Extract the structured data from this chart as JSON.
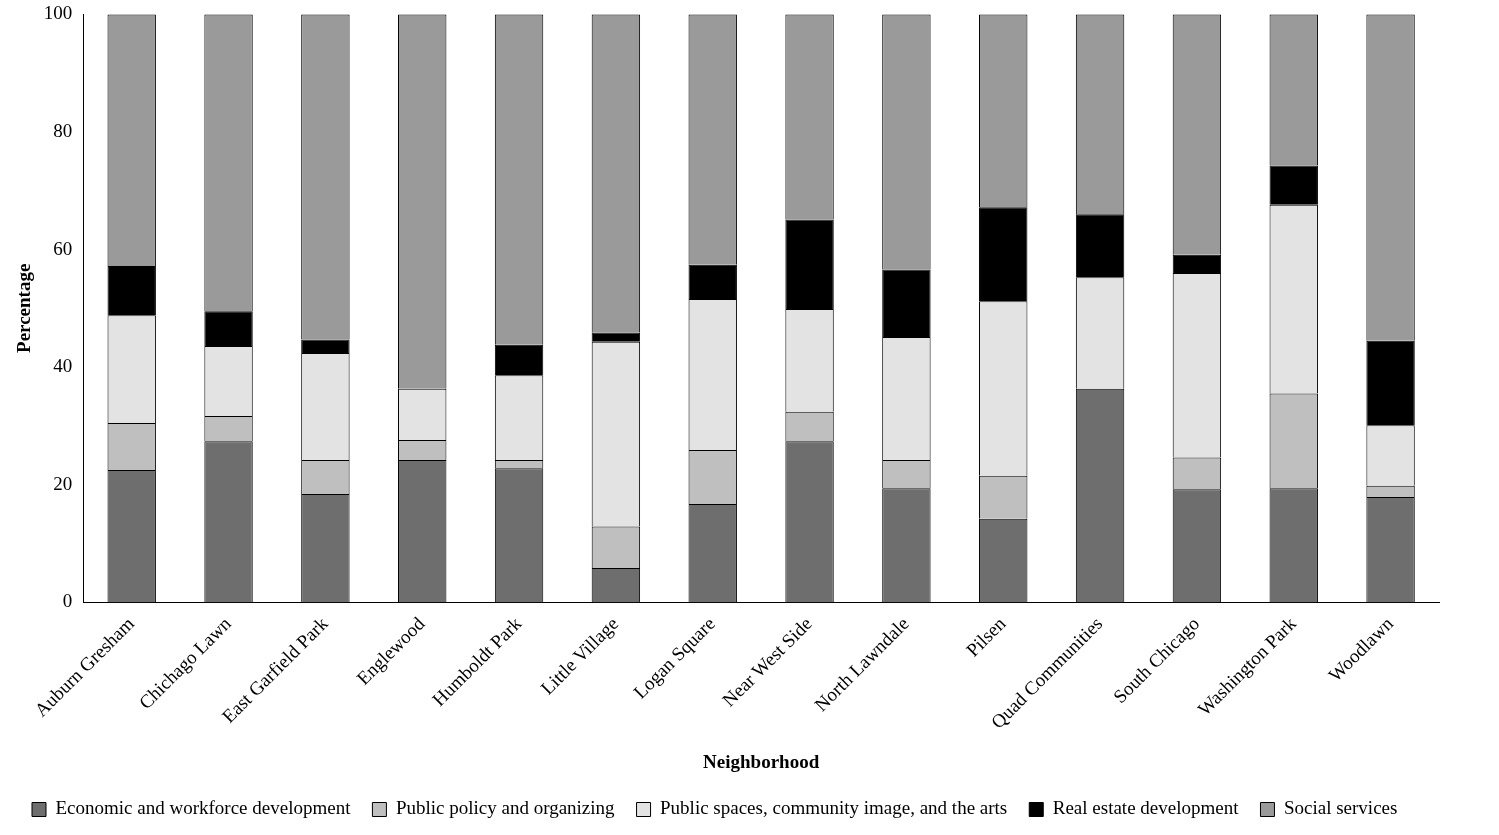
{
  "chart_data": {
    "type": "bar",
    "stacked": true,
    "xlabel": "Neighborhood",
    "ylabel": "Percentage",
    "categories": [
      "Auburn Gresham",
      "Chichago Lawn",
      "East Garfield Park",
      "Englewood",
      "Humboldt Park",
      "Little Village",
      "Logan Square",
      "Near West Side",
      "North Lawndale",
      "Pilsen",
      "Quad Communities",
      "South Chicago",
      "Washington Park",
      "Woodlawn"
    ],
    "series": [
      {
        "name": "Economic and workforce development",
        "color": "#6e6e6e",
        "values": [
          22.5,
          27.4,
          18.4,
          24.2,
          22.8,
          5.8,
          16.7,
          27.4,
          19.4,
          14.2,
          36.3,
          19.2,
          19.4,
          17.9
        ]
      },
      {
        "name": "Public policy and organizing",
        "color": "#bfbfbf",
        "values": [
          8.0,
          4.3,
          5.8,
          3.4,
          1.4,
          7.1,
          9.2,
          5.0,
          4.8,
          7.3,
          0,
          5.4,
          16.1,
          1.9
        ]
      },
      {
        "name": "Public spaces, community image, and the arts",
        "color": "#e3e3e3",
        "values": [
          18.3,
          11.9,
          18.2,
          8.7,
          14.4,
          31.4,
          25.7,
          17.5,
          20.9,
          29.7,
          19.0,
          31.4,
          32.1,
          10.3
        ]
      },
      {
        "name": "Real estate development",
        "color": "#000000",
        "values": [
          8.4,
          5.9,
          2.3,
          0,
          5.2,
          1.6,
          5.8,
          15.2,
          11.5,
          16.0,
          10.7,
          3.1,
          6.7,
          14.4
        ]
      },
      {
        "name": "Social services",
        "color": "#9a9a9a",
        "values": [
          42.8,
          50.5,
          55.3,
          63.7,
          56.2,
          54.1,
          42.6,
          34.9,
          43.4,
          32.8,
          34.0,
          40.9,
          25.7,
          55.5
        ]
      }
    ],
    "ylim": [
      0,
      100
    ],
    "yticks": [
      0,
      20,
      40,
      60,
      80,
      100
    ],
    "grid": false,
    "legend": "bottom"
  }
}
